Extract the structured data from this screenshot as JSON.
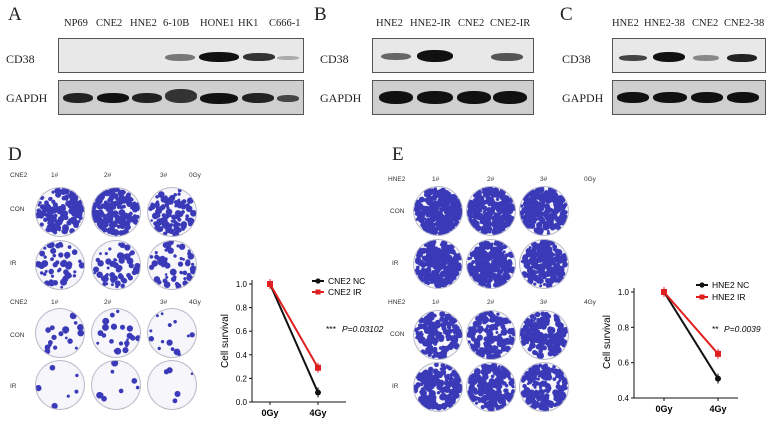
{
  "panelA": {
    "letter": "A",
    "lanes": [
      "NP69",
      "CNE2",
      "HNE2",
      "6-10B",
      "HONE1",
      "HK1",
      "C666-1"
    ],
    "rows": [
      "CD38",
      "GAPDH"
    ]
  },
  "panelB": {
    "letter": "B",
    "lanes": [
      "HNE2",
      "HNE2-IR",
      "CNE2",
      "CNE2-IR"
    ],
    "rows": [
      "CD38",
      "GAPDH"
    ]
  },
  "panelC": {
    "letter": "C",
    "lanes": [
      "HNE2",
      "HNE2-38",
      "CNE2",
      "CNE2-38"
    ],
    "rows": [
      "CD38",
      "GAPDH"
    ]
  },
  "panelD": {
    "letter": "D",
    "block1": {
      "cell": "CNE2",
      "cols": [
        "1#",
        "2#",
        "3#"
      ],
      "dose": "0Gy",
      "rows": [
        "CON",
        "IR"
      ]
    },
    "block2": {
      "cell": "CNE2",
      "cols": [
        "1#",
        "2#",
        "3#"
      ],
      "dose": "4Gy",
      "rows": [
        "CON",
        "IR"
      ]
    },
    "chart": {
      "ylabel": "Cell survival",
      "legend": [
        "CNE2 NC",
        "CNE2 IR"
      ],
      "stat_stars": "***",
      "stat_p": "P=0.03102",
      "yticks": [
        "0.0",
        "0.2",
        "0.4",
        "0.6",
        "0.8",
        "1.0"
      ],
      "xticks": [
        "0Gy",
        "4Gy"
      ]
    }
  },
  "panelE": {
    "letter": "E",
    "block1": {
      "cell": "HNE2",
      "cols": [
        "1#",
        "2#",
        "3#"
      ],
      "dose": "0Gy",
      "rows": [
        "CON",
        "IR"
      ]
    },
    "block2": {
      "cell": "HNE2",
      "cols": [
        "1#",
        "2#",
        "3#"
      ],
      "dose": "4Gy",
      "rows": [
        "CON",
        "IR"
      ]
    },
    "chart": {
      "ylabel": "Cell survival",
      "legend": [
        "HNE2 NC",
        "HNE2 IR"
      ],
      "stat_stars": "**",
      "stat_p": "P=0.0039",
      "yticks": [
        "0.4",
        "0.6",
        "0.8",
        "1.0"
      ],
      "xticks": [
        "0Gy",
        "4Gy"
      ]
    }
  },
  "colors": {
    "nc": "#111111",
    "ir": "#e02020",
    "stain": "#3a3ab8"
  },
  "chart_data": [
    {
      "type": "line",
      "x": [
        "0Gy",
        "4Gy"
      ],
      "ylabel": "Cell survival",
      "ylim": [
        0,
        1.0
      ],
      "series": [
        {
          "name": "CNE2 NC",
          "values": [
            1.0,
            0.08
          ],
          "color": "#111111"
        },
        {
          "name": "CNE2 IR",
          "values": [
            1.0,
            0.29
          ],
          "color": "#e02020"
        }
      ],
      "annotation": "*** P=0.03102",
      "legend": "top-right"
    },
    {
      "type": "line",
      "x": [
        "0Gy",
        "4Gy"
      ],
      "ylabel": "Cell survival",
      "ylim": [
        0.4,
        1.0
      ],
      "series": [
        {
          "name": "HNE2 NC",
          "values": [
            1.0,
            0.51
          ],
          "color": "#111111"
        },
        {
          "name": "HNE2 IR",
          "values": [
            1.0,
            0.65
          ],
          "color": "#e02020"
        }
      ],
      "annotation": "** P=0.0039",
      "legend": "top-right"
    }
  ]
}
